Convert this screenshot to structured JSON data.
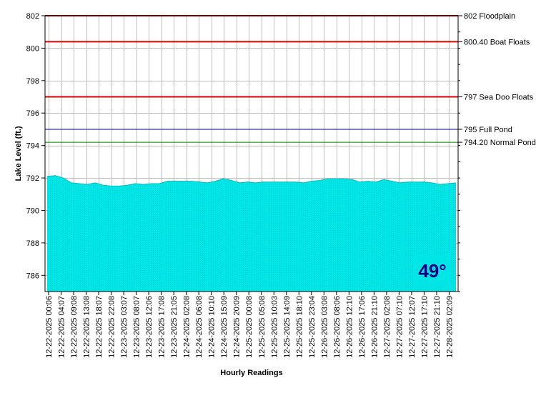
{
  "chart_data": {
    "type": "area",
    "title": "",
    "xlabel": "Hourly Readings",
    "ylabel": "Lake Level (ft.)",
    "ylim": [
      785,
      802
    ],
    "yticks": [
      786,
      788,
      790,
      792,
      794,
      796,
      798,
      800,
      802
    ],
    "grid": true,
    "fill_color": "#00e5e5",
    "x_tick_labels": [
      "12-22-2025 00:06",
      "12-22-2025 04:07",
      "12-22-2025 09:08",
      "12-22-2025 13:08",
      "12-22-2025 18:07",
      "12-22-2025 22:08",
      "12-23-2025 03:07",
      "12-23-2025 08:07",
      "12-23-2025 12:06",
      "12-23-2025 17:08",
      "12-23-2025 21:05",
      "12-24-2025 02:08",
      "12-24-2025 06:08",
      "12-24-2025 10:10",
      "12-24-2025 15:09",
      "12-24-2025 20:09",
      "12-25-2025 00:08",
      "12-25-2025 05:08",
      "12-25-2025 10:03",
      "12-25-2025 14:09",
      "12-25-2025 18:10",
      "12-25-2025 23:04",
      "12-26-2025 03:08",
      "12-26-2025 08:06",
      "12-26-2025 12:10",
      "12-26-2025 17:06",
      "12-26-2025 21:10",
      "12-27-2025 02:08",
      "12-27-2025 07:10",
      "12-27-2025 12:07",
      "12-27-2025 17:10",
      "12-27-2025 21:10",
      "12-28-2025 02:09"
    ],
    "series": [
      {
        "values": [
          792.1,
          792.15,
          792.0,
          791.7,
          791.65,
          791.6,
          791.7,
          791.55,
          791.5,
          791.5,
          791.55,
          791.65,
          791.6,
          791.65,
          791.65,
          791.8,
          791.8,
          791.8,
          791.8,
          791.75,
          791.7,
          791.8,
          791.95,
          791.85,
          791.7,
          791.75,
          791.7,
          791.75,
          791.75,
          791.75,
          791.75,
          791.75,
          791.7,
          791.8,
          791.85,
          791.95,
          791.95,
          791.95,
          791.9,
          791.75,
          791.8,
          791.75,
          791.9,
          791.8,
          791.7,
          791.75,
          791.75,
          791.75,
          791.7,
          791.6,
          791.65,
          791.7
        ]
      }
    ],
    "reference_lines": [
      {
        "value": 802,
        "label": "802 Floodplain",
        "color": "#dd0000"
      },
      {
        "value": 800.4,
        "label": "800.40 Boat Floats",
        "color": "#dd0000"
      },
      {
        "value": 797,
        "label": "797 Sea Doo Floats",
        "color": "#dd0000"
      },
      {
        "value": 795,
        "label": "795 Full Pond",
        "color": "#000080"
      },
      {
        "value": 794.2,
        "label": "794.20 Normal Pond",
        "color": "#008000"
      }
    ],
    "temperature": {
      "text": "49°",
      "color": "#000080"
    }
  }
}
